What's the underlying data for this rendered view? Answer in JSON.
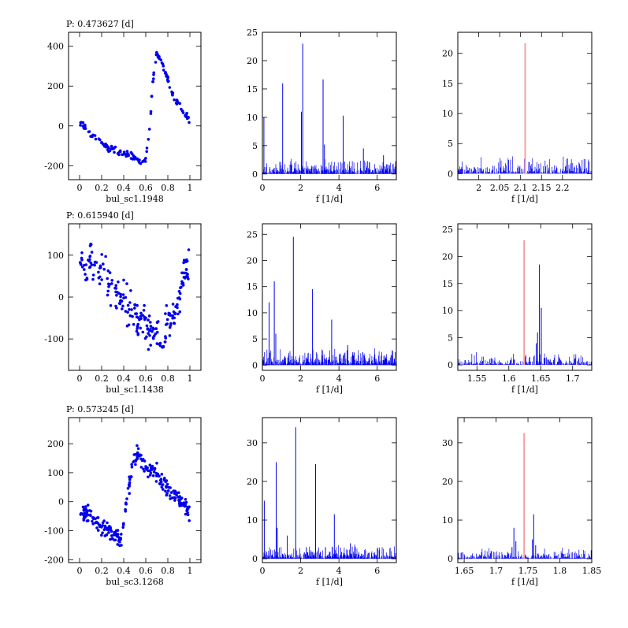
{
  "colors": {
    "points": "#0000ee",
    "spectrum": "#0000ee",
    "marker": "#f4a0a0",
    "axes": "#000000"
  },
  "rows": [
    {
      "period_label": "P: 0.473627 [d]",
      "star": "bul_sc1.1948"
    },
    {
      "period_label": "P: 0.615940 [d]",
      "star": "bul_sc1.1438"
    },
    {
      "period_label": "P: 0.573245 [d]",
      "star": "bul_sc3.1268"
    }
  ],
  "chart_data": [
    {
      "type": "scatter",
      "title": "P: 0.473627 [d]",
      "xlabel": "bul_sc1.1948",
      "ylabel": "",
      "xlim": [
        -0.1,
        1.1
      ],
      "ylim": [
        -270,
        470
      ],
      "xticks": [
        0,
        0.2,
        0.4,
        0.6,
        0.8,
        1
      ],
      "yticks": [
        -200,
        0,
        200,
        400
      ],
      "curve": [
        [
          0.02,
          10
        ],
        [
          0.1,
          -40
        ],
        [
          0.2,
          -90
        ],
        [
          0.3,
          -120
        ],
        [
          0.4,
          -140
        ],
        [
          0.5,
          -160
        ],
        [
          0.55,
          -190
        ],
        [
          0.6,
          -160
        ],
        [
          0.64,
          10
        ],
        [
          0.66,
          200
        ],
        [
          0.7,
          370
        ],
        [
          0.75,
          320
        ],
        [
          0.85,
          150
        ],
        [
          1.0,
          20
        ]
      ],
      "scatter": 12,
      "n_points": 150
    },
    {
      "type": "bar",
      "title": "",
      "xlabel": "f [1/d]",
      "ylabel": "",
      "xlim": [
        0,
        7
      ],
      "ylim": [
        -1,
        25
      ],
      "xticks": [
        0,
        2,
        4,
        6
      ],
      "yticks": [
        0,
        5,
        10,
        15,
        20,
        25
      ],
      "noise": 1.8,
      "noise_step": 0.02,
      "peaks": [
        [
          0.08,
          10
        ],
        [
          1.06,
          16
        ],
        [
          2.11,
          23
        ],
        [
          3.17,
          16.7
        ],
        [
          4.22,
          10.3
        ],
        [
          5.28,
          4.5
        ],
        [
          6.33,
          3.3
        ],
        [
          2.04,
          11
        ],
        [
          3.24,
          5.2
        ],
        [
          4.29,
          2.2
        ]
      ],
      "marker": null
    },
    {
      "type": "bar",
      "title": "",
      "xlabel": "f [1/d]",
      "ylabel": "",
      "xlim": [
        1.95,
        2.27
      ],
      "ylim": [
        -1,
        23.5
      ],
      "xticks": [
        2,
        2.05,
        2.1,
        2.15,
        2.2
      ],
      "yticks": [
        0,
        5,
        10,
        15,
        20
      ],
      "noise": 2.0,
      "noise_step": 0.0015,
      "peaks": [],
      "marker": [
        2.111,
        21.7
      ]
    },
    {
      "type": "scatter",
      "title": "P: 0.615940 [d]",
      "xlabel": "bul_sc1.1438",
      "ylabel": "",
      "xlim": [
        -0.1,
        1.1
      ],
      "ylim": [
        -175,
        175
      ],
      "xticks": [
        0,
        0.2,
        0.4,
        0.6,
        0.8,
        1
      ],
      "yticks": [
        -100,
        0,
        100
      ],
      "curve": [
        [
          0.0,
          70
        ],
        [
          0.1,
          80
        ],
        [
          0.2,
          55
        ],
        [
          0.3,
          20
        ],
        [
          0.4,
          -15
        ],
        [
          0.5,
          -45
        ],
        [
          0.6,
          -70
        ],
        [
          0.7,
          -100
        ],
        [
          0.75,
          -110
        ],
        [
          0.8,
          -60
        ],
        [
          0.87,
          -30
        ],
        [
          0.9,
          0
        ],
        [
          0.95,
          60
        ],
        [
          1.0,
          80
        ]
      ],
      "scatter": 32,
      "n_points": 220
    },
    {
      "type": "bar",
      "title": "",
      "xlabel": "f [1/d]",
      "ylabel": "",
      "xlim": [
        0,
        7
      ],
      "ylim": [
        -1,
        27
      ],
      "xticks": [
        0,
        2,
        4,
        6
      ],
      "yticks": [
        0,
        5,
        10,
        15,
        20,
        25
      ],
      "noise": 2.2,
      "noise_step": 0.02,
      "peaks": [
        [
          0.35,
          12
        ],
        [
          0.62,
          16
        ],
        [
          1.62,
          24.5
        ],
        [
          2.62,
          14.5
        ],
        [
          3.62,
          8.7
        ],
        [
          4.46,
          3.8
        ],
        [
          5.24,
          2.5
        ],
        [
          0.7,
          6
        ]
      ],
      "marker": null
    },
    {
      "type": "bar",
      "title": "",
      "xlabel": "f [1/d]",
      "ylabel": "",
      "xlim": [
        1.52,
        1.73
      ],
      "ylim": [
        -1,
        26
      ],
      "xticks": [
        1.55,
        1.6,
        1.65,
        1.7
      ],
      "yticks": [
        0,
        5,
        10,
        15,
        20,
        25
      ],
      "noise": 1.6,
      "noise_step": 0.001,
      "peaks": [
        [
          1.648,
          18.5
        ],
        [
          1.651,
          10.5
        ],
        [
          1.645,
          6
        ],
        [
          1.643,
          4
        ]
      ],
      "marker": [
        1.624,
        23
      ]
    },
    {
      "type": "scatter",
      "title": "P: 0.573245 [d]",
      "xlabel": "bul_sc3.1268",
      "ylabel": "",
      "xlim": [
        -0.1,
        1.1
      ],
      "ylim": [
        -210,
        290
      ],
      "xticks": [
        0,
        0.2,
        0.4,
        0.6,
        0.8,
        1
      ],
      "yticks": [
        -200,
        -100,
        0,
        100,
        200
      ],
      "curve": [
        [
          0.0,
          -30
        ],
        [
          0.1,
          -50
        ],
        [
          0.2,
          -80
        ],
        [
          0.3,
          -110
        ],
        [
          0.38,
          -140
        ],
        [
          0.42,
          -20
        ],
        [
          0.46,
          80
        ],
        [
          0.52,
          180
        ],
        [
          0.56,
          130
        ],
        [
          0.7,
          90
        ],
        [
          0.85,
          30
        ],
        [
          1.0,
          -30
        ]
      ],
      "scatter": 22,
      "n_points": 250
    },
    {
      "type": "bar",
      "title": "",
      "xlabel": "f [1/d]",
      "ylabel": "",
      "xlim": [
        0,
        7
      ],
      "ylim": [
        -1,
        36.5
      ],
      "xticks": [
        0,
        2,
        4,
        6
      ],
      "yticks": [
        0,
        10,
        20,
        30
      ],
      "noise": 2.4,
      "noise_step": 0.02,
      "peaks": [
        [
          0.1,
          15
        ],
        [
          0.72,
          25
        ],
        [
          0.78,
          8
        ],
        [
          1.74,
          34
        ],
        [
          2.78,
          24.5
        ],
        [
          3.76,
          11.5
        ],
        [
          1.3,
          6
        ],
        [
          2.3,
          3
        ],
        [
          3.3,
          3
        ],
        [
          4.6,
          4
        ]
      ],
      "marker": null
    },
    {
      "type": "bar",
      "title": "",
      "xlabel": "f [1/d]",
      "ylabel": "",
      "xlim": [
        1.64,
        1.85
      ],
      "ylim": [
        -1,
        36.5
      ],
      "xticks": [
        1.65,
        1.7,
        1.75,
        1.8,
        1.85
      ],
      "yticks": [
        0,
        10,
        20,
        30
      ],
      "noise": 2.0,
      "noise_step": 0.001,
      "peaks": [
        [
          1.728,
          8
        ],
        [
          1.731,
          4.5
        ],
        [
          1.759,
          11.5
        ],
        [
          1.757,
          5
        ],
        [
          1.762,
          3.5
        ],
        [
          1.725,
          3
        ]
      ],
      "marker": [
        1.744,
        32.5
      ]
    }
  ]
}
